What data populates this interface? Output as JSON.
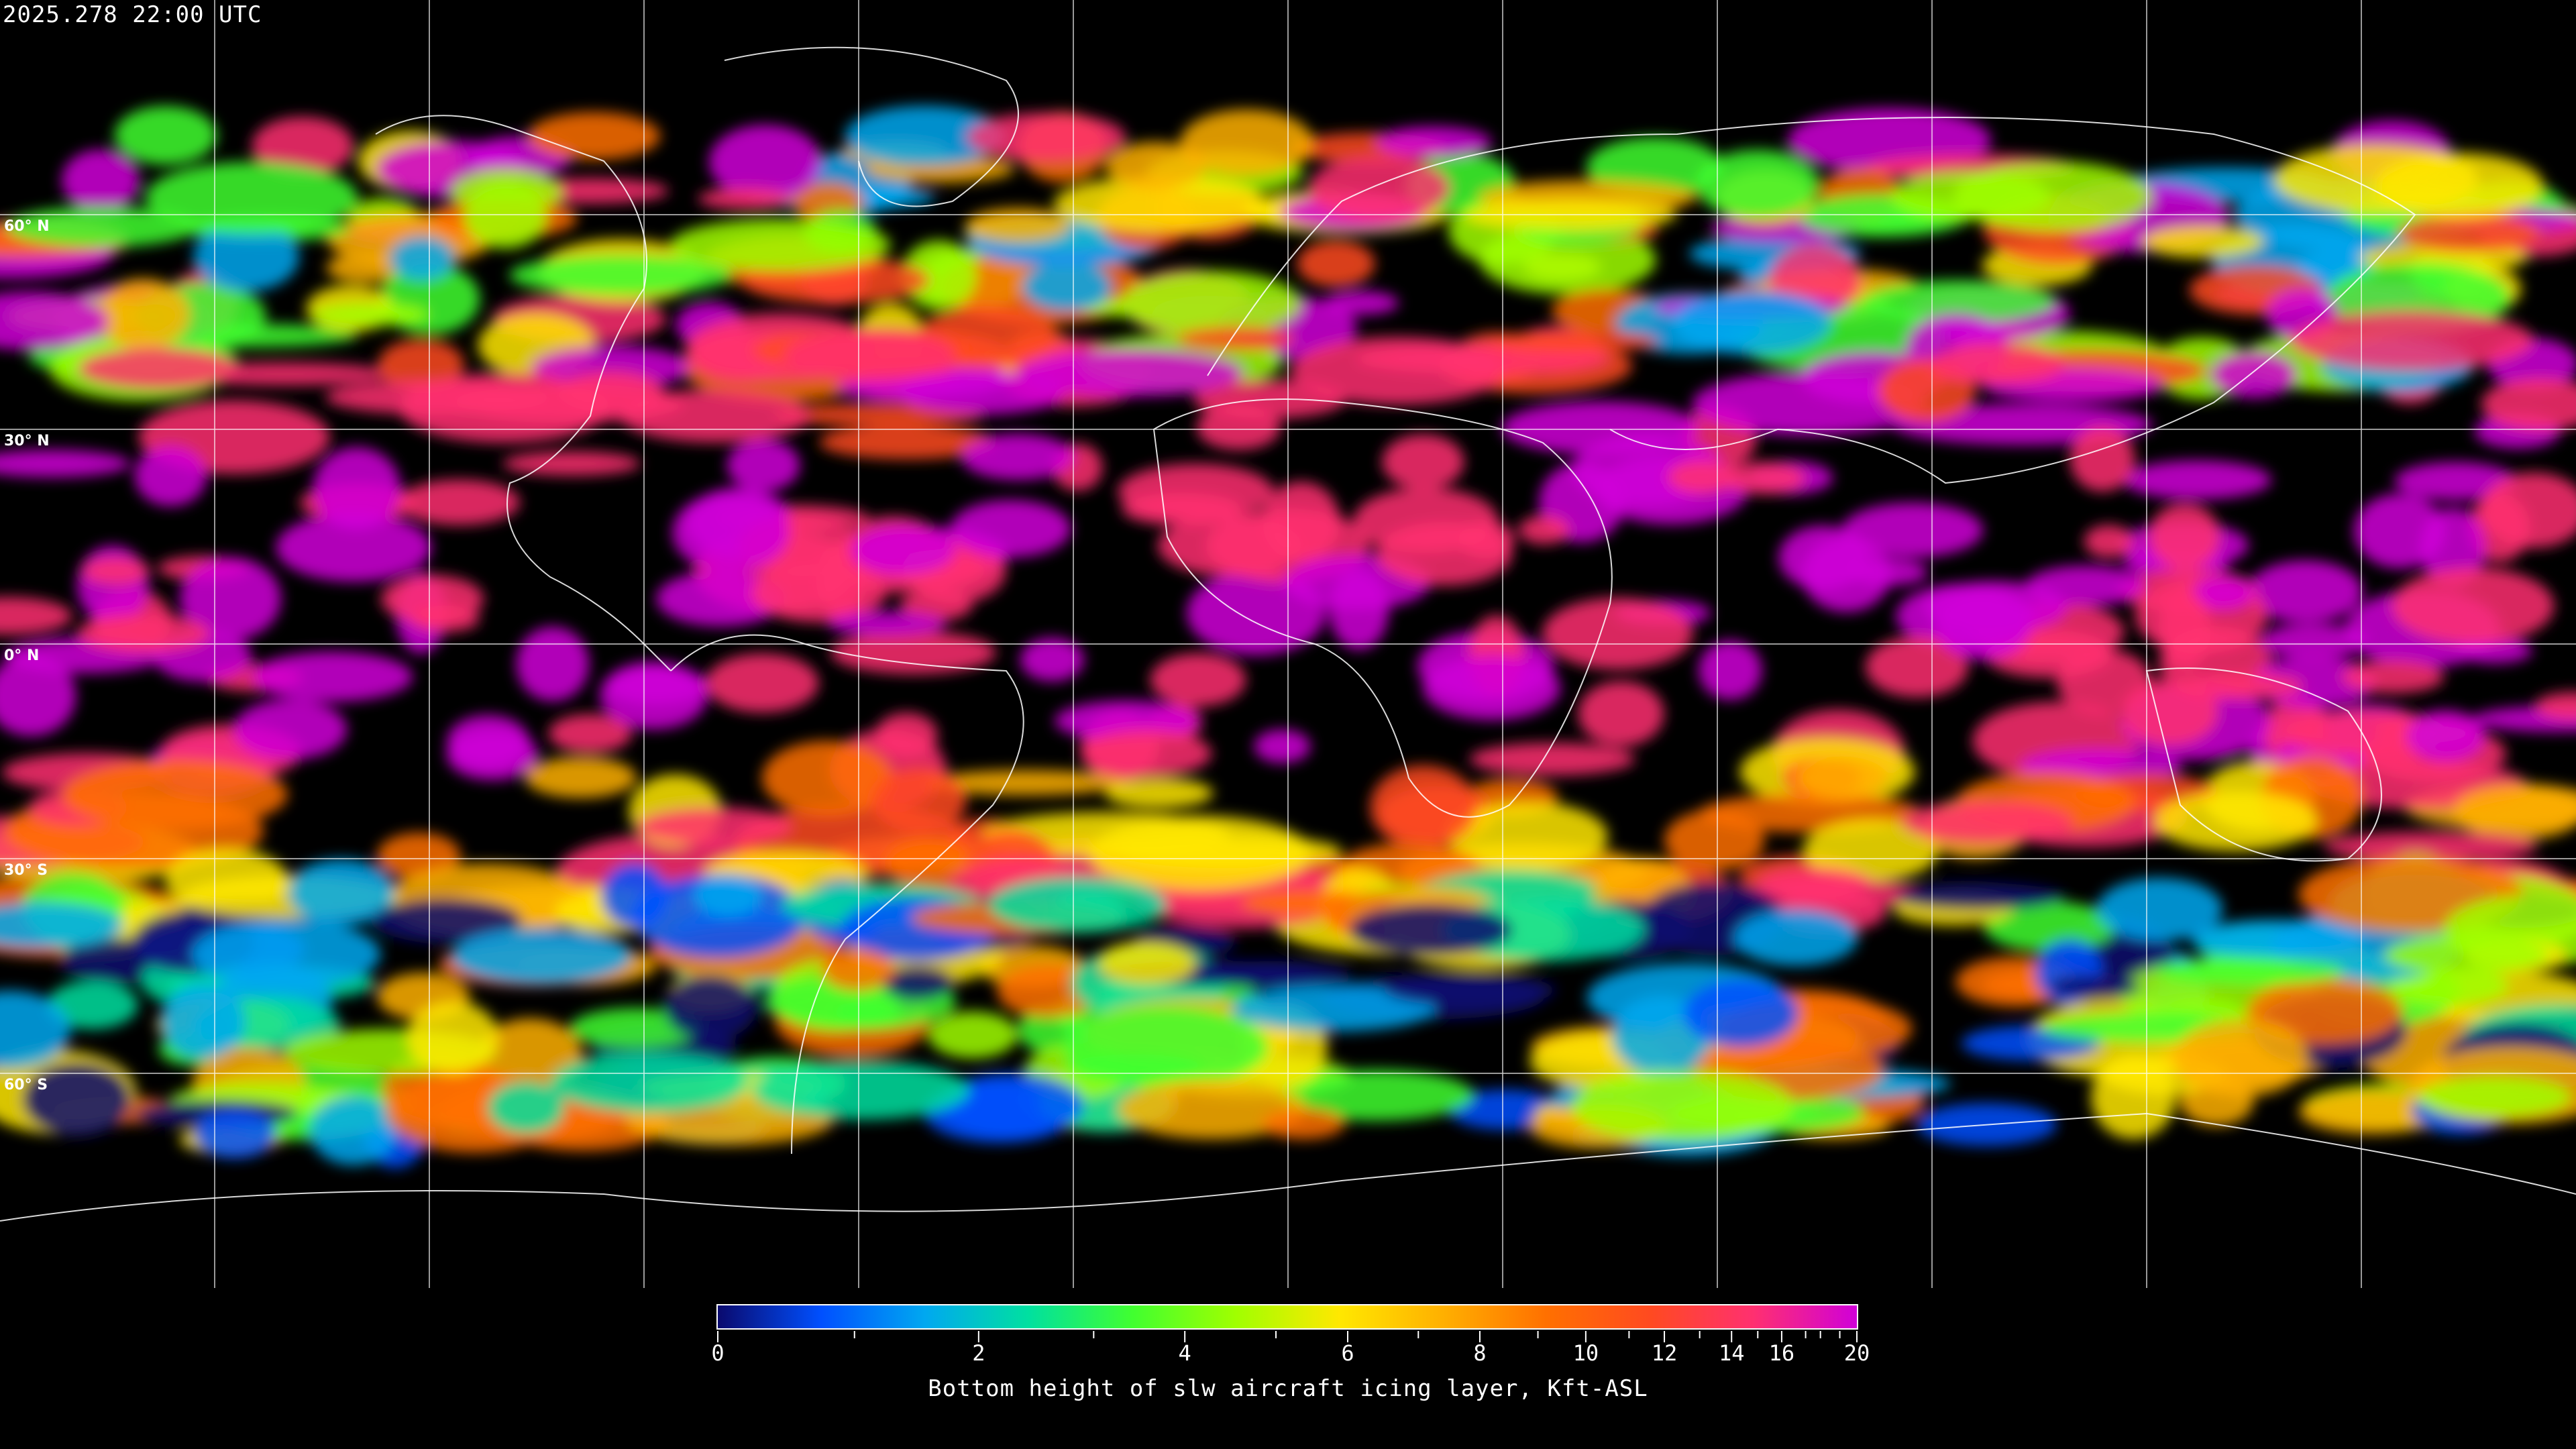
{
  "header": {
    "timestamp": "2025.278 22:00 UTC"
  },
  "map": {
    "projection": "equirectangular",
    "grid_spacing_deg": 30,
    "lat_labels": [
      "60° N",
      "30° N",
      "0° N",
      "30° S",
      "60° S"
    ],
    "background": "#000000",
    "coastline_color": "#ffffff",
    "grid_color": "#ffffff"
  },
  "colorbar": {
    "label": "Bottom height of slw aircraft icing layer, Kft-ASL",
    "ticks": [
      "0",
      "2",
      "4",
      "6",
      "8",
      "10",
      "12",
      "14",
      "16",
      "20"
    ],
    "range": [
      0,
      20
    ],
    "colors": [
      "#0a0a6e",
      "#0050ff",
      "#00a8f0",
      "#00e0a0",
      "#40ff30",
      "#a0ff00",
      "#ffe800",
      "#ffb000",
      "#ff7000",
      "#ff4a20",
      "#ff3070",
      "#d000d8"
    ]
  }
}
